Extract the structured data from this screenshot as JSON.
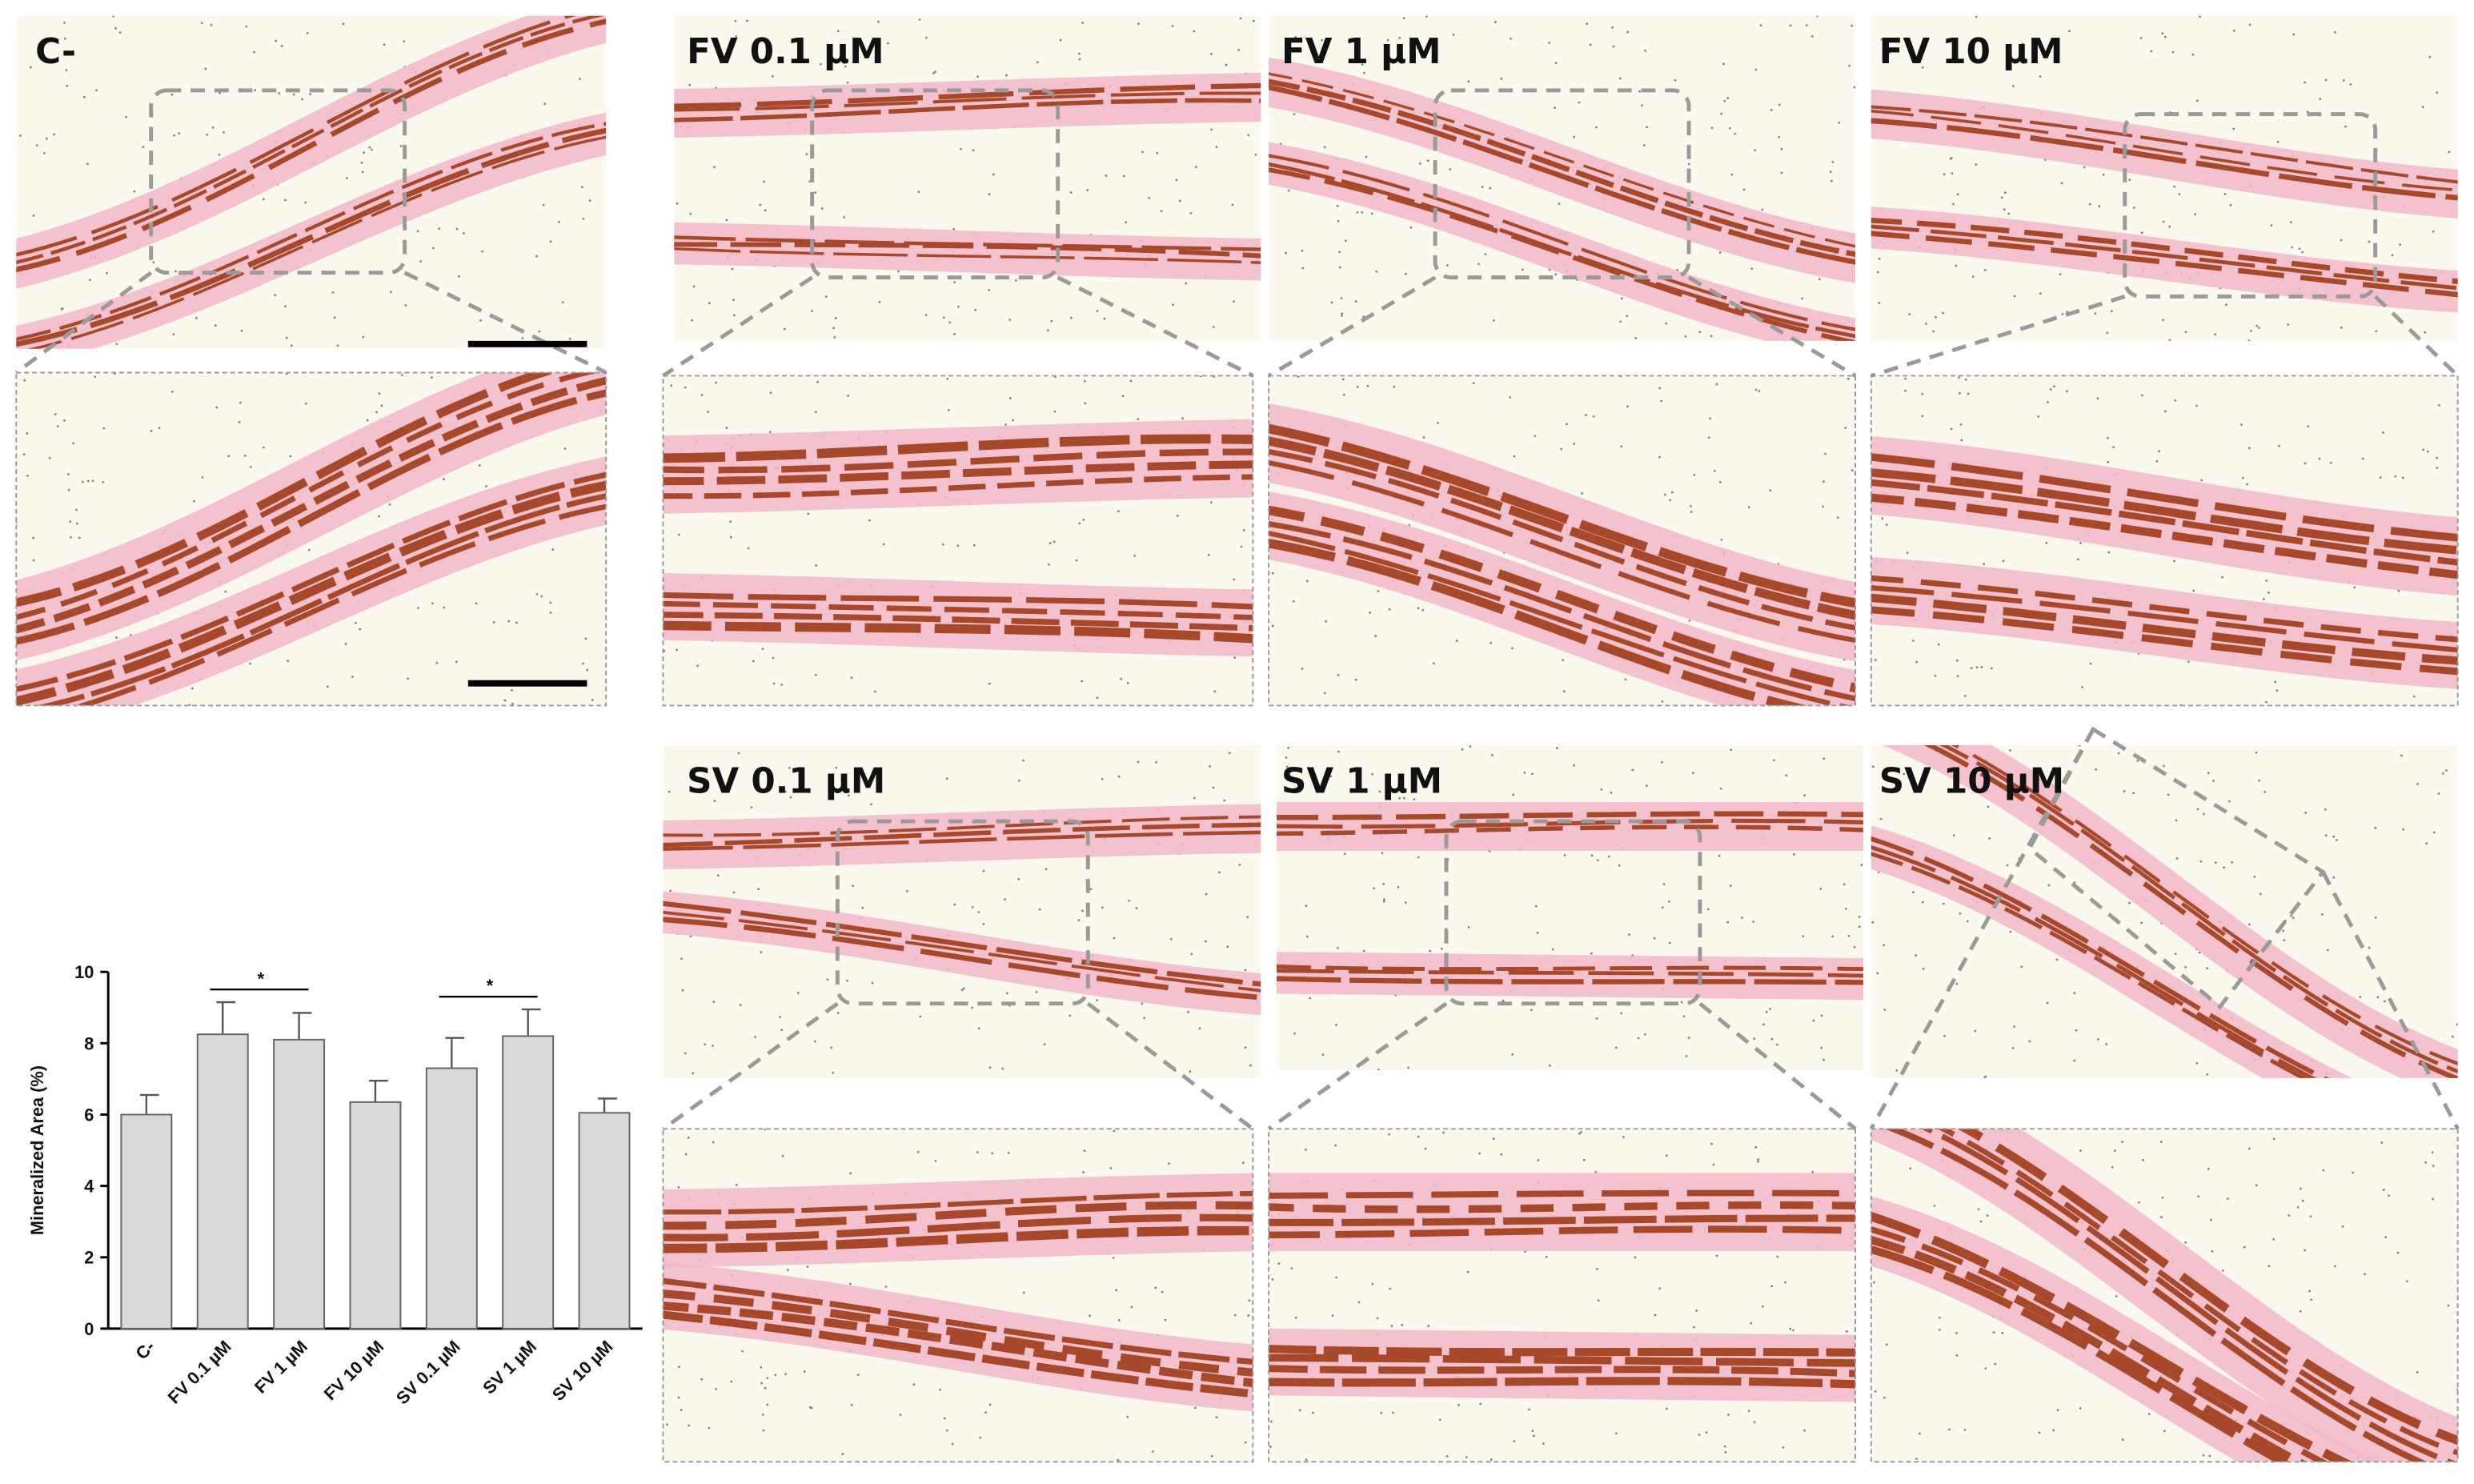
{
  "panels": [
    {
      "label": "C-"
    },
    {
      "label": "FV 0.1 µM"
    },
    {
      "label": "FV 1 µM"
    },
    {
      "label": "FV 10 µM"
    },
    {
      "label": "SV 0.1 µM"
    },
    {
      "label": "SV 1 µM"
    },
    {
      "label": "SV 10 µM"
    }
  ],
  "chart_data": {
    "type": "bar",
    "y_label": "Mineralized Area (%)",
    "categories": [
      "C-",
      "FV 0.1 µM",
      "FV 1 µM",
      "FV 10 µM",
      "SV 0.1 µM",
      "SV 1 µM",
      "SV 10 µM"
    ],
    "values": [
      6.0,
      8.25,
      8.1,
      6.35,
      7.3,
      8.2,
      6.05
    ],
    "errors": [
      0.55,
      0.9,
      0.75,
      0.6,
      0.85,
      0.75,
      0.4
    ],
    "color": "#d9d9d9",
    "ylim": [
      0,
      10
    ],
    "yticks": [
      0,
      2,
      4,
      6,
      8,
      10
    ],
    "annotations": [
      {
        "text": "*",
        "between": [
          1,
          2
        ]
      },
      {
        "text": "*",
        "between": [
          4,
          5
        ]
      }
    ]
  }
}
